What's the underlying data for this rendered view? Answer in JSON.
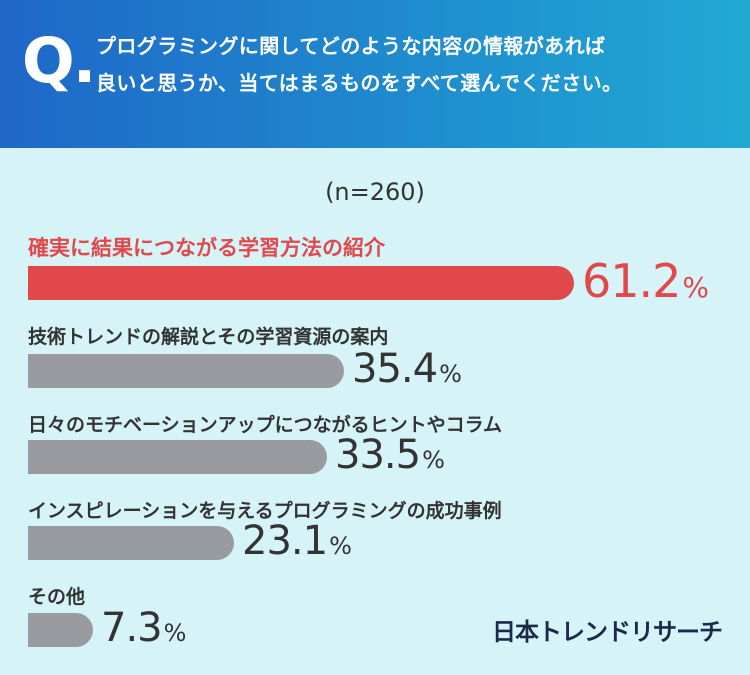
{
  "header": {
    "q_mark": "Q.",
    "question_line1": "プログラミングに関してどのような内容の情報があれば",
    "question_line2": "良いと思うか、当てはまるものをすべて選んでください。"
  },
  "sample_size": "(n=260)",
  "brand": "日本トレンドリサーチ",
  "colors": {
    "highlight": "#e0484c",
    "bar": "#9a9ba0",
    "header_start": "#1f67c8",
    "header_end": "#21a9d3",
    "background": "#d6f4f8"
  },
  "chart_data": {
    "type": "bar",
    "orientation": "horizontal",
    "unit": "%",
    "categories": [
      "確実に結果につながる学習方法の紹介",
      "技術トレンドの解説とその学習資源の案内",
      "日々のモチベーションアップにつながるヒントやコラム",
      "インスピレーションを与えるプログラミングの成功事例",
      "その他"
    ],
    "values": [
      61.2,
      35.4,
      33.5,
      23.1,
      7.3
    ],
    "value_labels": [
      "61.2",
      "35.4",
      "33.5",
      "23.1",
      "7.3"
    ],
    "percent_sign": "%",
    "highlight_index": 0
  }
}
